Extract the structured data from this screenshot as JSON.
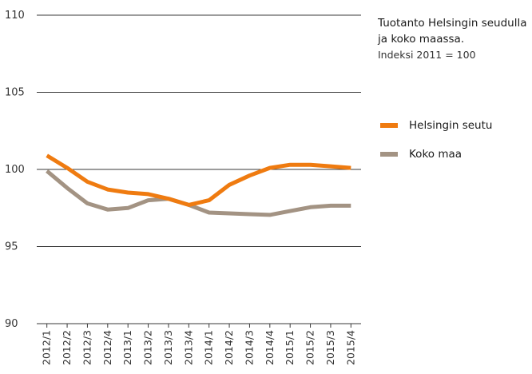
{
  "chart_data": {
    "type": "line",
    "title": "Tuotanto Helsingin seudulla ja koko maassa.",
    "subtitle": "Indeksi 2011 = 100",
    "categories": [
      "2012/1",
      "2012/2",
      "2012/3",
      "2012/4",
      "2013/1",
      "2013/2",
      "2013/3",
      "2013/4",
      "2014/1",
      "2014/2",
      "2014/3",
      "2014/4",
      "2015/1",
      "2015/2",
      "2015/3",
      "2015/4"
    ],
    "series": [
      {
        "name": "Helsingin seutu",
        "color": "#ef7b10",
        "values": [
          100.9,
          100.1,
          99.2,
          98.7,
          98.5,
          98.4,
          98.1,
          97.7,
          98.0,
          99.0,
          99.6,
          100.1,
          100.3,
          100.3,
          100.2,
          100.1
        ]
      },
      {
        "name": "Koko maa",
        "color": "#a39383",
        "values": [
          99.9,
          98.8,
          97.8,
          97.4,
          97.5,
          98.0,
          98.1,
          97.7,
          97.2,
          97.15,
          97.1,
          97.05,
          97.3,
          97.55,
          97.65,
          97.65
        ]
      }
    ],
    "ylim": [
      90,
      110
    ],
    "yticks": [
      "90",
      "95",
      "100",
      "105",
      "110"
    ],
    "grid": true,
    "legend": "right"
  }
}
